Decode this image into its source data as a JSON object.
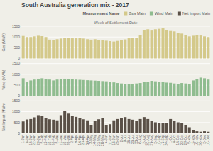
{
  "chart_data": [
    {
      "type": "bar",
      "title": "South Australia generation mix - 2017",
      "x_label": "Week of Settlement Date",
      "y_label": "Gas (MWh)",
      "legend": "upper right",
      "legend_title": "Measurement Name",
      "categories": [
        "1-Jan",
        "8-Jan",
        "15-Jan",
        "22-Jan",
        "29-Jan",
        "5-Feb",
        "12-Feb",
        "19-Feb",
        "26-Feb",
        "5-Mar",
        "12-Mar",
        "19-Mar",
        "26-Mar",
        "2-Apr",
        "9-Apr",
        "16-Apr",
        "23-Apr",
        "30-Apr",
        "7-May",
        "14-May",
        "21-May",
        "28-May",
        "4-Jun",
        "11-Jun",
        "18-Jun",
        "25-Jun",
        "2-Jul",
        "9-Jul",
        "16-Jul",
        "23-Jul",
        "30-Jul",
        "6-Aug",
        "13-Aug",
        "20-Aug",
        "27-Aug",
        "3-Sep",
        "10-Sep",
        "17-Sep",
        "24-Sep",
        "1-Oct",
        "8-Oct",
        "15-Oct",
        "22-Oct",
        "29-Oct",
        "5-Nov",
        "12-Nov",
        "19-Nov",
        "26-Nov",
        "3-Dec",
        "10-Dec"
      ],
      "series": [
        {
          "name": "Gas Main",
          "color": "#d4c98a",
          "values": [
            1050,
            1000,
            1000,
            1030,
            1060,
            1040,
            1000,
            880,
            860,
            900,
            930,
            970,
            960,
            940,
            940,
            950,
            930,
            900,
            880,
            900,
            870,
            850,
            830,
            810,
            790,
            820,
            850,
            890,
            940,
            960,
            950,
            1080,
            1320,
            1360,
            1300,
            1360,
            1380,
            1400,
            1330,
            1280,
            1260,
            1180,
            1160,
            1080,
            1030,
            1060,
            1080,
            1070,
            1030,
            1000
          ]
        }
      ],
      "ylim": [
        0,
        1500
      ],
      "yticks": [
        0,
        500,
        1000,
        1500
      ],
      "grid": true,
      "tick_labels": "y"
    },
    {
      "type": "bar",
      "y_label": "Wind (MWh)",
      "categories": [
        "1-Jan",
        "8-Jan",
        "15-Jan",
        "22-Jan",
        "29-Jan",
        "5-Feb",
        "12-Feb",
        "19-Feb",
        "26-Feb",
        "5-Mar",
        "12-Mar",
        "19-Mar",
        "26-Mar",
        "2-Apr",
        "9-Apr",
        "16-Apr",
        "23-Apr",
        "30-Apr",
        "7-May",
        "14-May",
        "21-May",
        "28-May",
        "4-Jun",
        "11-Jun",
        "18-Jun",
        "25-Jun",
        "2-Jul",
        "9-Jul",
        "16-Jul",
        "23-Jul",
        "30-Jul",
        "6-Aug",
        "13-Aug",
        "20-Aug",
        "27-Aug",
        "3-Sep",
        "10-Sep",
        "17-Sep",
        "24-Sep",
        "1-Oct",
        "8-Oct",
        "15-Oct",
        "22-Oct",
        "29-Oct",
        "5-Nov",
        "12-Nov",
        "19-Nov",
        "26-Nov",
        "3-Dec",
        "10-Dec"
      ],
      "series": [
        {
          "name": "Wind Main",
          "color": "#8fbc8f",
          "values": [
            820,
            650,
            720,
            760,
            800,
            820,
            790,
            760,
            720,
            760,
            780,
            800,
            790,
            780,
            760,
            750,
            740,
            730,
            720,
            710,
            700,
            690,
            680,
            650,
            630,
            600,
            580,
            560,
            550,
            560,
            580,
            600,
            650,
            660,
            700,
            680,
            650,
            650,
            620,
            610,
            580,
            560,
            600,
            580,
            560,
            720,
            780,
            850,
            820,
            760
          ]
        }
      ],
      "ylim": [
        0,
        1500
      ],
      "yticks": [
        0,
        500,
        1000,
        1500
      ],
      "grid": true,
      "tick_labels": "y"
    },
    {
      "type": "bar",
      "y_label": "Net Import (MWh)",
      "categories": [
        "1-Jan",
        "8-Jan",
        "15-Jan",
        "22-Jan",
        "29-Jan",
        "5-Feb",
        "12-Feb",
        "19-Feb",
        "26-Feb",
        "5-Mar",
        "12-Mar",
        "19-Mar",
        "26-Mar",
        "2-Apr",
        "9-Apr",
        "16-Apr",
        "23-Apr",
        "30-Apr",
        "7-May",
        "14-May",
        "21-May",
        "28-May",
        "4-Jun",
        "11-Jun",
        "18-Jun",
        "25-Jun",
        "2-Jul",
        "9-Jul",
        "16-Jul",
        "23-Jul",
        "30-Jul",
        "6-Aug",
        "13-Aug",
        "20-Aug",
        "27-Aug",
        "3-Sep",
        "10-Sep",
        "17-Sep",
        "24-Sep",
        "1-Oct",
        "8-Oct",
        "15-Oct",
        "22-Oct",
        "29-Oct",
        "5-Nov",
        "12-Nov",
        "19-Nov",
        "26-Nov",
        "3-Dec",
        "10-Dec"
      ],
      "series": [
        {
          "name": "Net Import Main",
          "color": "#5a5047",
          "values": [
            550,
            640,
            660,
            740,
            840,
            790,
            720,
            650,
            630,
            600,
            840,
            1020,
            910,
            790,
            760,
            700,
            650,
            600,
            370,
            560,
            650,
            700,
            380,
            420,
            600,
            660,
            700,
            750,
            660,
            630,
            560,
            660,
            750,
            660,
            560,
            510,
            470,
            470,
            470,
            660,
            560,
            510,
            470,
            380,
            280,
            140,
            95,
            75,
            95,
            75
          ]
        }
      ],
      "ylim": [
        0,
        1500
      ],
      "yticks": [
        0,
        500,
        1000,
        1500
      ],
      "grid": true
    }
  ]
}
